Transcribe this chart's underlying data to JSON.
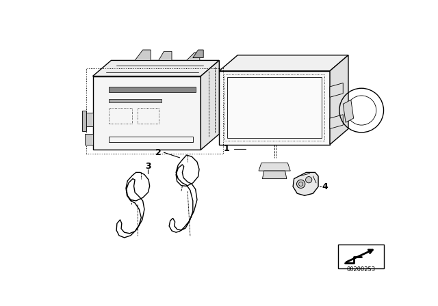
{
  "bg_color": "#ffffff",
  "line_color": "#000000",
  "figure_width": 6.4,
  "figure_height": 4.48,
  "dpi": 100,
  "watermark_text": "00200253",
  "label_1": "1",
  "label_2": "2",
  "label_3": "3",
  "label_4": "4",
  "lw_main": 1.0,
  "lw_thin": 0.6,
  "lw_dot": 0.5
}
